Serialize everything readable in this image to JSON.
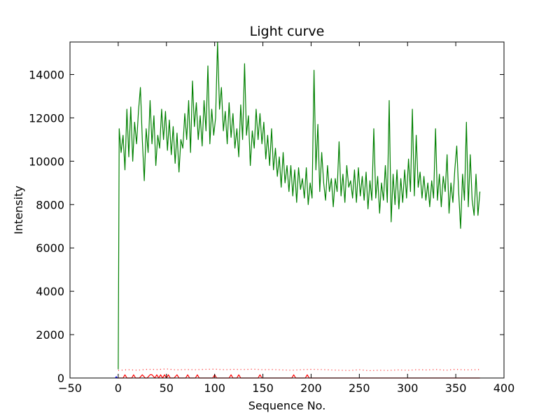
{
  "chart_data": {
    "type": "line",
    "title": "Light curve",
    "xlabel": "Sequence No.",
    "ylabel": "Intensity",
    "xlim": [
      -50,
      400
    ],
    "ylim": [
      0,
      15500
    ],
    "xticks": [
      -50,
      0,
      50,
      100,
      150,
      200,
      250,
      300,
      350,
      400
    ],
    "xtick_labels": [
      "−50",
      "0",
      "50",
      "100",
      "150",
      "200",
      "250",
      "300",
      "350",
      "400"
    ],
    "yticks": [
      0,
      2000,
      4000,
      6000,
      8000,
      10000,
      12000,
      14000
    ],
    "ytick_labels": [
      "0",
      "2000",
      "4000",
      "6000",
      "8000",
      "10000",
      "12000",
      "14000"
    ],
    "grid": false,
    "series": [
      {
        "color": "#008000",
        "style": "solid",
        "points": [
          [
            0,
            400
          ],
          [
            1,
            11500
          ],
          [
            3,
            10400
          ],
          [
            5,
            11200
          ],
          [
            7,
            9600
          ],
          [
            9,
            12400
          ],
          [
            11,
            10200
          ],
          [
            13,
            12500
          ],
          [
            15,
            10000
          ],
          [
            17,
            11800
          ],
          [
            19,
            10800
          ],
          [
            21,
            12300
          ],
          [
            23,
            13400
          ],
          [
            25,
            11000
          ],
          [
            27,
            9100
          ],
          [
            29,
            11500
          ],
          [
            31,
            10400
          ],
          [
            33,
            12800
          ],
          [
            35,
            10800
          ],
          [
            37,
            12100
          ],
          [
            39,
            9800
          ],
          [
            41,
            11200
          ],
          [
            43,
            10600
          ],
          [
            45,
            12400
          ],
          [
            47,
            11000
          ],
          [
            49,
            12300
          ],
          [
            51,
            10500
          ],
          [
            53,
            11900
          ],
          [
            55,
            10300
          ],
          [
            57,
            11600
          ],
          [
            59,
            9900
          ],
          [
            61,
            11300
          ],
          [
            63,
            9500
          ],
          [
            65,
            11000
          ],
          [
            67,
            10600
          ],
          [
            69,
            12200
          ],
          [
            71,
            11000
          ],
          [
            73,
            12800
          ],
          [
            75,
            10400
          ],
          [
            77,
            13700
          ],
          [
            79,
            11600
          ],
          [
            81,
            12700
          ],
          [
            83,
            11000
          ],
          [
            85,
            12100
          ],
          [
            87,
            10700
          ],
          [
            89,
            12800
          ],
          [
            91,
            11400
          ],
          [
            93,
            14400
          ],
          [
            95,
            10800
          ],
          [
            97,
            12400
          ],
          [
            99,
            11200
          ],
          [
            101,
            12000
          ],
          [
            103,
            15500
          ],
          [
            105,
            12400
          ],
          [
            107,
            13400
          ],
          [
            109,
            11400
          ],
          [
            111,
            12300
          ],
          [
            113,
            10800
          ],
          [
            115,
            12700
          ],
          [
            117,
            11100
          ],
          [
            119,
            12200
          ],
          [
            121,
            10600
          ],
          [
            123,
            11500
          ],
          [
            125,
            10200
          ],
          [
            127,
            12600
          ],
          [
            129,
            11000
          ],
          [
            131,
            14500
          ],
          [
            133,
            11200
          ],
          [
            135,
            12100
          ],
          [
            137,
            9800
          ],
          [
            139,
            11400
          ],
          [
            141,
            10600
          ],
          [
            143,
            12400
          ],
          [
            145,
            11000
          ],
          [
            147,
            12200
          ],
          [
            149,
            10800
          ],
          [
            151,
            11800
          ],
          [
            153,
            10100
          ],
          [
            155,
            11200
          ],
          [
            157,
            9800
          ],
          [
            159,
            11500
          ],
          [
            161,
            9600
          ],
          [
            163,
            10600
          ],
          [
            165,
            9300
          ],
          [
            167,
            10200
          ],
          [
            169,
            8800
          ],
          [
            171,
            10400
          ],
          [
            173,
            9000
          ],
          [
            175,
            9800
          ],
          [
            177,
            8600
          ],
          [
            179,
            9800
          ],
          [
            181,
            8400
          ],
          [
            183,
            9600
          ],
          [
            185,
            8100
          ],
          [
            187,
            9700
          ],
          [
            189,
            8700
          ],
          [
            191,
            9200
          ],
          [
            193,
            8300
          ],
          [
            195,
            9700
          ],
          [
            197,
            8000
          ],
          [
            199,
            9000
          ],
          [
            201,
            8300
          ],
          [
            203,
            14200
          ],
          [
            205,
            9600
          ],
          [
            207,
            11700
          ],
          [
            209,
            8600
          ],
          [
            211,
            10400
          ],
          [
            213,
            9000
          ],
          [
            215,
            8200
          ],
          [
            217,
            9800
          ],
          [
            219,
            8600
          ],
          [
            221,
            9200
          ],
          [
            223,
            7900
          ],
          [
            225,
            9200
          ],
          [
            227,
            8600
          ],
          [
            229,
            10900
          ],
          [
            231,
            8400
          ],
          [
            233,
            9400
          ],
          [
            235,
            8100
          ],
          [
            237,
            9800
          ],
          [
            239,
            8800
          ],
          [
            241,
            9100
          ],
          [
            243,
            8300
          ],
          [
            245,
            9600
          ],
          [
            247,
            8100
          ],
          [
            249,
            9700
          ],
          [
            251,
            8400
          ],
          [
            253,
            9300
          ],
          [
            255,
            8200
          ],
          [
            257,
            9500
          ],
          [
            259,
            7800
          ],
          [
            261,
            9100
          ],
          [
            263,
            8200
          ],
          [
            265,
            11500
          ],
          [
            267,
            8300
          ],
          [
            269,
            9300
          ],
          [
            271,
            7600
          ],
          [
            273,
            9000
          ],
          [
            275,
            8200
          ],
          [
            277,
            9800
          ],
          [
            279,
            8100
          ],
          [
            281,
            12800
          ],
          [
            283,
            7200
          ],
          [
            285,
            9400
          ],
          [
            287,
            8000
          ],
          [
            289,
            9600
          ],
          [
            291,
            7800
          ],
          [
            293,
            9200
          ],
          [
            295,
            8100
          ],
          [
            297,
            9600
          ],
          [
            299,
            8300
          ],
          [
            301,
            10100
          ],
          [
            303,
            8600
          ],
          [
            305,
            12400
          ],
          [
            307,
            8400
          ],
          [
            309,
            11200
          ],
          [
            311,
            8800
          ],
          [
            313,
            9500
          ],
          [
            315,
            8300
          ],
          [
            317,
            9300
          ],
          [
            319,
            8200
          ],
          [
            321,
            9000
          ],
          [
            323,
            7900
          ],
          [
            325,
            9100
          ],
          [
            327,
            8300
          ],
          [
            329,
            11500
          ],
          [
            331,
            8200
          ],
          [
            333,
            9400
          ],
          [
            335,
            7900
          ],
          [
            337,
            9300
          ],
          [
            339,
            8600
          ],
          [
            341,
            10300
          ],
          [
            343,
            7600
          ],
          [
            345,
            9000
          ],
          [
            347,
            8100
          ],
          [
            349,
            9600
          ],
          [
            351,
            10700
          ],
          [
            353,
            8600
          ],
          [
            355,
            6900
          ],
          [
            357,
            9400
          ],
          [
            359,
            8200
          ],
          [
            361,
            11800
          ],
          [
            363,
            7900
          ],
          [
            365,
            10300
          ],
          [
            367,
            8200
          ],
          [
            369,
            7500
          ],
          [
            371,
            9400
          ],
          [
            373,
            7500
          ],
          [
            375,
            8600
          ]
        ]
      },
      {
        "color": "#ff0000",
        "style": "dotted",
        "points": [
          [
            0,
            350
          ],
          [
            10,
            380
          ],
          [
            20,
            360
          ],
          [
            30,
            400
          ],
          [
            40,
            390
          ],
          [
            50,
            420
          ],
          [
            60,
            370
          ],
          [
            70,
            390
          ],
          [
            80,
            380
          ],
          [
            90,
            400
          ],
          [
            100,
            410
          ],
          [
            110,
            380
          ],
          [
            120,
            400
          ],
          [
            130,
            390
          ],
          [
            140,
            410
          ],
          [
            150,
            380
          ],
          [
            160,
            390
          ],
          [
            170,
            370
          ],
          [
            180,
            360
          ],
          [
            190,
            380
          ],
          [
            200,
            400
          ],
          [
            210,
            390
          ],
          [
            220,
            370
          ],
          [
            230,
            360
          ],
          [
            240,
            350
          ],
          [
            250,
            380
          ],
          [
            260,
            340
          ],
          [
            270,
            360
          ],
          [
            280,
            350
          ],
          [
            290,
            370
          ],
          [
            300,
            360
          ],
          [
            310,
            380
          ],
          [
            320,
            370
          ],
          [
            330,
            390
          ],
          [
            340,
            360
          ],
          [
            350,
            400
          ],
          [
            360,
            370
          ],
          [
            370,
            380
          ],
          [
            375,
            390
          ]
        ]
      },
      {
        "color": "#ff0000",
        "style": "solid",
        "points": [
          [
            0,
            0
          ],
          [
            5,
            0
          ],
          [
            7,
            150
          ],
          [
            9,
            0
          ],
          [
            14,
            0
          ],
          [
            16,
            150
          ],
          [
            18,
            0
          ],
          [
            22,
            0
          ],
          [
            25,
            150
          ],
          [
            28,
            0
          ],
          [
            30,
            0
          ],
          [
            33,
            150
          ],
          [
            35,
            150
          ],
          [
            38,
            0
          ],
          [
            40,
            150
          ],
          [
            42,
            0
          ],
          [
            44,
            150
          ],
          [
            46,
            0
          ],
          [
            48,
            150
          ],
          [
            50,
            0
          ],
          [
            52,
            150
          ],
          [
            54,
            0
          ],
          [
            58,
            0
          ],
          [
            61,
            150
          ],
          [
            63,
            0
          ],
          [
            70,
            0
          ],
          [
            72,
            150
          ],
          [
            74,
            0
          ],
          [
            80,
            0
          ],
          [
            82,
            150
          ],
          [
            84,
            0
          ],
          [
            98,
            0
          ],
          [
            100,
            150
          ],
          [
            102,
            0
          ],
          [
            115,
            0
          ],
          [
            117,
            150
          ],
          [
            119,
            0
          ],
          [
            123,
            0
          ],
          [
            125,
            150
          ],
          [
            127,
            0
          ],
          [
            145,
            0
          ],
          [
            147,
            150
          ],
          [
            149,
            0
          ],
          [
            180,
            0
          ],
          [
            182,
            150
          ],
          [
            184,
            0
          ],
          [
            194,
            0
          ],
          [
            196,
            150
          ],
          [
            198,
            0
          ],
          [
            375,
            0
          ]
        ]
      },
      {
        "color": "#0000ff",
        "style": "solid",
        "points": [
          [
            -3,
            0
          ],
          [
            -2,
            60
          ],
          [
            -1,
            0
          ],
          [
            0,
            0
          ]
        ]
      }
    ]
  }
}
